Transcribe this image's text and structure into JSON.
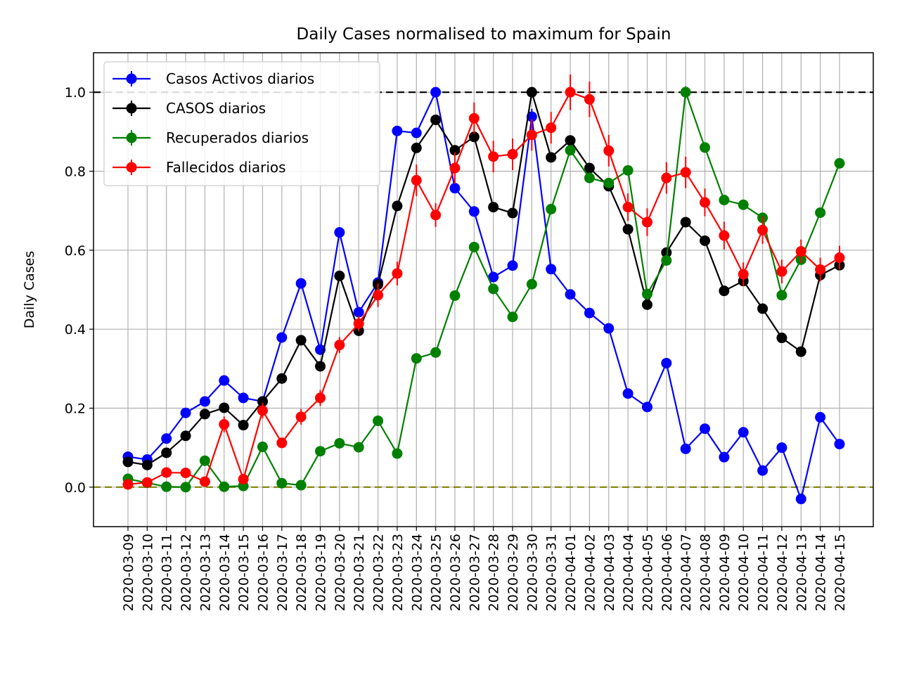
{
  "chart_data": {
    "type": "line",
    "title": "Daily Cases normalised to maximum for Spain",
    "xlabel": "",
    "ylabel": "Daily Cases",
    "ylim": [
      -0.1,
      1.1
    ],
    "yticks": [
      0.0,
      0.2,
      0.4,
      0.6,
      0.8,
      1.0
    ],
    "ytick_labels": [
      "0.0",
      "0.2",
      "0.4",
      "0.6",
      "0.8",
      "1.0"
    ],
    "grid": true,
    "legend_position": "upper-left",
    "reference_lines": [
      {
        "y": 1.0,
        "color": "#000000",
        "style": "dashed"
      },
      {
        "y": 0.0,
        "color": "#808000",
        "style": "dashed"
      }
    ],
    "x": [
      "2020-03-09",
      "2020-03-10",
      "2020-03-11",
      "2020-03-12",
      "2020-03-13",
      "2020-03-14",
      "2020-03-15",
      "2020-03-16",
      "2020-03-17",
      "2020-03-18",
      "2020-03-19",
      "2020-03-20",
      "2020-03-21",
      "2020-03-22",
      "2020-03-23",
      "2020-03-24",
      "2020-03-25",
      "2020-03-26",
      "2020-03-27",
      "2020-03-28",
      "2020-03-29",
      "2020-03-30",
      "2020-03-31",
      "2020-04-01",
      "2020-04-02",
      "2020-04-03",
      "2020-04-04",
      "2020-04-05",
      "2020-04-06",
      "2020-04-07",
      "2020-04-08",
      "2020-04-09",
      "2020-04-10",
      "2020-04-11",
      "2020-04-12",
      "2020-04-13",
      "2020-04-14",
      "2020-04-15"
    ],
    "series": [
      {
        "name": "Casos Activos diarios",
        "color": "#0000ff",
        "values": [
          0.077,
          0.07,
          0.123,
          0.188,
          0.217,
          0.27,
          0.226,
          0.217,
          0.379,
          0.516,
          0.348,
          0.645,
          0.443,
          0.518,
          0.902,
          0.897,
          1.0,
          0.757,
          0.698,
          0.532,
          0.561,
          0.938,
          0.552,
          0.488,
          0.441,
          0.402,
          0.237,
          0.203,
          0.314,
          0.097,
          0.148,
          0.076,
          0.139,
          0.042,
          0.1,
          -0.03,
          0.177,
          0.109
        ],
        "errors": [
          0.005,
          0.005,
          0.005,
          0.005,
          0.005,
          0.005,
          0.005,
          0.005,
          0.005,
          0.005,
          0.005,
          0.005,
          0.005,
          0.005,
          0.005,
          0.005,
          0.005,
          0.005,
          0.005,
          0.005,
          0.005,
          0.02,
          0.005,
          0.005,
          0.005,
          0.005,
          0.005,
          0.005,
          0.005,
          0.005,
          0.005,
          0.005,
          0.005,
          0.005,
          0.005,
          0.005,
          0.005,
          0.005
        ]
      },
      {
        "name": "CASOS diarios",
        "color": "#000000",
        "values": [
          0.064,
          0.056,
          0.087,
          0.13,
          0.185,
          0.201,
          0.157,
          0.217,
          0.275,
          0.372,
          0.306,
          0.535,
          0.396,
          0.513,
          0.712,
          0.859,
          0.93,
          0.853,
          0.887,
          0.709,
          0.694,
          1.0,
          0.835,
          0.878,
          0.808,
          0.762,
          0.653,
          0.462,
          0.594,
          0.671,
          0.624,
          0.497,
          0.522,
          0.452,
          0.378,
          0.343,
          0.537,
          0.562
        ],
        "errors": [
          0.005,
          0.005,
          0.005,
          0.005,
          0.005,
          0.005,
          0.005,
          0.005,
          0.005,
          0.005,
          0.005,
          0.005,
          0.005,
          0.005,
          0.005,
          0.005,
          0.005,
          0.005,
          0.005,
          0.005,
          0.005,
          0.005,
          0.005,
          0.005,
          0.005,
          0.005,
          0.005,
          0.005,
          0.005,
          0.005,
          0.005,
          0.005,
          0.005,
          0.005,
          0.005,
          0.005,
          0.005,
          0.005
        ]
      },
      {
        "name": "Recuperados diarios",
        "color": "#008000",
        "values": [
          0.021,
          0.011,
          0.001,
          0.0,
          0.067,
          0.001,
          0.003,
          0.102,
          0.01,
          0.005,
          0.091,
          0.111,
          0.101,
          0.168,
          0.085,
          0.326,
          0.341,
          0.485,
          0.608,
          0.502,
          0.431,
          0.514,
          0.704,
          0.853,
          0.783,
          0.77,
          0.802,
          0.489,
          0.574,
          1.0,
          0.86,
          0.727,
          0.715,
          0.682,
          0.486,
          0.576,
          0.695,
          0.82
        ],
        "errors": [
          0.003,
          0.003,
          0.003,
          0.003,
          0.003,
          0.003,
          0.003,
          0.003,
          0.003,
          0.003,
          0.003,
          0.003,
          0.003,
          0.003,
          0.003,
          0.003,
          0.003,
          0.003,
          0.003,
          0.003,
          0.003,
          0.003,
          0.003,
          0.003,
          0.003,
          0.003,
          0.003,
          0.003,
          0.003,
          0.015,
          0.003,
          0.003,
          0.003,
          0.003,
          0.003,
          0.003,
          0.003,
          0.003
        ]
      },
      {
        "name": "Fallecidos diarios",
        "color": "#ff0000",
        "values": [
          0.007,
          0.012,
          0.037,
          0.036,
          0.014,
          0.159,
          0.02,
          0.194,
          0.112,
          0.178,
          0.226,
          0.36,
          0.414,
          0.486,
          0.541,
          0.777,
          0.689,
          0.808,
          0.934,
          0.837,
          0.843,
          0.892,
          0.91,
          1.0,
          0.982,
          0.852,
          0.709,
          0.671,
          0.783,
          0.797,
          0.721,
          0.637,
          0.539,
          0.651,
          0.546,
          0.597,
          0.551,
          0.581
        ],
        "errors": [
          0.01,
          0.01,
          0.01,
          0.01,
          0.01,
          0.02,
          0.01,
          0.02,
          0.01,
          0.02,
          0.02,
          0.02,
          0.02,
          0.03,
          0.03,
          0.04,
          0.03,
          0.04,
          0.04,
          0.04,
          0.04,
          0.04,
          0.04,
          0.045,
          0.045,
          0.04,
          0.035,
          0.035,
          0.04,
          0.04,
          0.035,
          0.035,
          0.03,
          0.035,
          0.03,
          0.03,
          0.03,
          0.03
        ]
      }
    ]
  }
}
